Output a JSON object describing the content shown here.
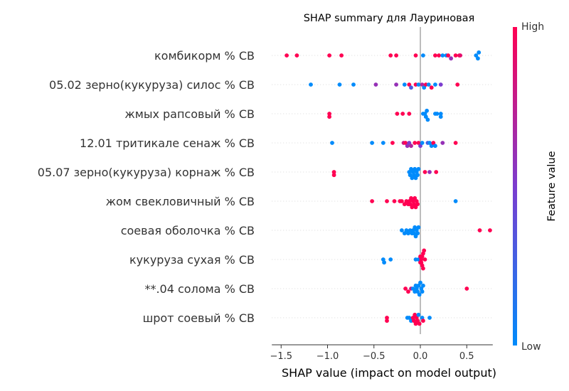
{
  "chart_data": {
    "type": "scatter",
    "title": "SHAP summary для Лауриновая",
    "xlabel": "SHAP value (impact on model output)",
    "xlim": [
      -1.6,
      0.78
    ],
    "xticks": [
      -1.5,
      -1.0,
      -0.5,
      0.0,
      0.5
    ],
    "xtick_labels": [
      "−1.5",
      "−1.0",
      "−0.5",
      "0.0",
      "0.5"
    ],
    "colorbar": {
      "label": "Feature value",
      "high_label": "High",
      "low_label": "Low",
      "colors": {
        "low": "#008bfb",
        "mid": "#7b3ccf",
        "high": "#ff0052"
      }
    },
    "features": [
      {
        "name": "комбикорм % СВ",
        "points": [
          {
            "x": -1.44,
            "v": 1
          },
          {
            "x": -1.33,
            "v": 1
          },
          {
            "x": -0.98,
            "v": 1
          },
          {
            "x": -0.85,
            "v": 1
          },
          {
            "x": -0.32,
            "v": 1
          },
          {
            "x": -0.26,
            "v": 1
          },
          {
            "x": -0.05,
            "v": 1
          },
          {
            "x": 0.03,
            "v": 0
          },
          {
            "x": 0.16,
            "v": 1
          },
          {
            "x": 0.2,
            "v": 1
          },
          {
            "x": 0.24,
            "v": 0
          },
          {
            "x": 0.28,
            "v": 0
          },
          {
            "x": 0.3,
            "v": 1
          },
          {
            "x": 0.33,
            "v": 0.6
          },
          {
            "x": 0.38,
            "v": 1
          },
          {
            "x": 0.42,
            "v": 1
          },
          {
            "x": 0.6,
            "v": 0
          },
          {
            "x": 0.62,
            "v": 0
          },
          {
            "x": 0.63,
            "v": 0
          },
          {
            "x": 0.43,
            "v": 0.9
          }
        ]
      },
      {
        "name": "05.02 зерно(кукуруза) силос % СВ",
        "points": [
          {
            "x": -1.18,
            "v": 0
          },
          {
            "x": -0.87,
            "v": 0
          },
          {
            "x": -0.72,
            "v": 0
          },
          {
            "x": -0.48,
            "v": 0.6
          },
          {
            "x": -0.26,
            "v": 0.6
          },
          {
            "x": -0.17,
            "v": 0
          },
          {
            "x": -0.12,
            "v": 1
          },
          {
            "x": -0.1,
            "v": 0.3
          },
          {
            "x": -0.05,
            "v": 1
          },
          {
            "x": -0.02,
            "v": 0
          },
          {
            "x": 0.02,
            "v": 0.7
          },
          {
            "x": 0.04,
            "v": 0
          },
          {
            "x": 0.06,
            "v": 1
          },
          {
            "x": 0.09,
            "v": 0
          },
          {
            "x": 0.12,
            "v": 1
          },
          {
            "x": 0.16,
            "v": 0
          },
          {
            "x": 0.22,
            "v": 0.5
          },
          {
            "x": 0.4,
            "v": 1
          }
        ]
      },
      {
        "name": "жмых рапсовый % СВ",
        "points": [
          {
            "x": -0.98,
            "v": 1
          },
          {
            "x": -0.98,
            "v": 1
          },
          {
            "x": -0.25,
            "v": 1
          },
          {
            "x": -0.19,
            "v": 1
          },
          {
            "x": -0.12,
            "v": 1
          },
          {
            "x": 0.03,
            "v": 0
          },
          {
            "x": 0.05,
            "v": 0
          },
          {
            "x": 0.06,
            "v": 0
          },
          {
            "x": 0.07,
            "v": 0
          },
          {
            "x": 0.08,
            "v": 0
          },
          {
            "x": 0.16,
            "v": 0
          },
          {
            "x": 0.18,
            "v": 0
          },
          {
            "x": 0.22,
            "v": 0
          },
          {
            "x": 0.22,
            "v": 0
          }
        ]
      },
      {
        "name": "12.01 тритикале сенаж % СВ",
        "points": [
          {
            "x": -0.95,
            "v": 0
          },
          {
            "x": -0.52,
            "v": 0
          },
          {
            "x": -0.4,
            "v": 0
          },
          {
            "x": -0.3,
            "v": 1
          },
          {
            "x": -0.18,
            "v": 0.8
          },
          {
            "x": -0.16,
            "v": 1
          },
          {
            "x": -0.14,
            "v": 0.6
          },
          {
            "x": -0.12,
            "v": 0.5
          },
          {
            "x": -0.1,
            "v": 0.7
          },
          {
            "x": -0.06,
            "v": 1
          },
          {
            "x": -0.02,
            "v": 1
          },
          {
            "x": 0.0,
            "v": 0.5
          },
          {
            "x": 0.02,
            "v": 0
          },
          {
            "x": 0.08,
            "v": 0.3
          },
          {
            "x": 0.1,
            "v": 0
          },
          {
            "x": 0.12,
            "v": 0
          },
          {
            "x": 0.14,
            "v": 1
          },
          {
            "x": 0.16,
            "v": 0
          },
          {
            "x": 0.24,
            "v": 0.6
          },
          {
            "x": 0.38,
            "v": 1
          }
        ]
      },
      {
        "name": "05.07 зерно(кукуруза) корнаж % СВ",
        "points": [
          {
            "x": -0.93,
            "v": 1
          },
          {
            "x": -0.93,
            "v": 1
          },
          {
            "x": -0.12,
            "v": 0
          },
          {
            "x": -0.11,
            "v": 0
          },
          {
            "x": -0.1,
            "v": 0
          },
          {
            "x": -0.09,
            "v": 0
          },
          {
            "x": -0.08,
            "v": 0
          },
          {
            "x": -0.07,
            "v": 0
          },
          {
            "x": -0.06,
            "v": 0
          },
          {
            "x": -0.05,
            "v": 0
          },
          {
            "x": -0.04,
            "v": 0
          },
          {
            "x": -0.03,
            "v": 0
          },
          {
            "x": -0.02,
            "v": 0
          },
          {
            "x": 0.05,
            "v": 1
          },
          {
            "x": 0.1,
            "v": 0.6
          },
          {
            "x": 0.17,
            "v": 1
          }
        ]
      },
      {
        "name": "жом свекловичный % СВ",
        "points": [
          {
            "x": -0.52,
            "v": 1
          },
          {
            "x": -0.36,
            "v": 1
          },
          {
            "x": -0.28,
            "v": 1
          },
          {
            "x": -0.22,
            "v": 1
          },
          {
            "x": -0.2,
            "v": 1
          },
          {
            "x": -0.17,
            "v": 1
          },
          {
            "x": -0.15,
            "v": 1
          },
          {
            "x": -0.13,
            "v": 1
          },
          {
            "x": -0.12,
            "v": 1
          },
          {
            "x": -0.11,
            "v": 1
          },
          {
            "x": -0.1,
            "v": 1
          },
          {
            "x": -0.09,
            "v": 1
          },
          {
            "x": -0.08,
            "v": 1
          },
          {
            "x": -0.07,
            "v": 1
          },
          {
            "x": -0.06,
            "v": 1
          },
          {
            "x": -0.05,
            "v": 1
          },
          {
            "x": -0.04,
            "v": 1
          },
          {
            "x": -0.03,
            "v": 1
          },
          {
            "x": 0.38,
            "v": 0
          }
        ]
      },
      {
        "name": "соевая оболочка % СВ",
        "points": [
          {
            "x": -0.2,
            "v": 0
          },
          {
            "x": -0.17,
            "v": 0
          },
          {
            "x": -0.15,
            "v": 0
          },
          {
            "x": -0.13,
            "v": 0
          },
          {
            "x": -0.11,
            "v": 0
          },
          {
            "x": -0.09,
            "v": 0
          },
          {
            "x": -0.08,
            "v": 0
          },
          {
            "x": -0.07,
            "v": 0
          },
          {
            "x": -0.06,
            "v": 0
          },
          {
            "x": -0.05,
            "v": 0
          },
          {
            "x": -0.04,
            "v": 0
          },
          {
            "x": -0.03,
            "v": 0
          },
          {
            "x": -0.02,
            "v": 0
          },
          {
            "x": 0.64,
            "v": 1
          },
          {
            "x": 0.75,
            "v": 1
          }
        ]
      },
      {
        "name": "кукуруза сухая % СВ",
        "points": [
          {
            "x": -0.4,
            "v": 0
          },
          {
            "x": -0.39,
            "v": 0
          },
          {
            "x": -0.32,
            "v": 0
          },
          {
            "x": -0.05,
            "v": 0
          },
          {
            "x": -0.02,
            "v": 0
          },
          {
            "x": 0.0,
            "v": 1
          },
          {
            "x": 0.0,
            "v": 1
          },
          {
            "x": 0.01,
            "v": 1
          },
          {
            "x": 0.01,
            "v": 1
          },
          {
            "x": 0.02,
            "v": 1
          },
          {
            "x": 0.02,
            "v": 1
          },
          {
            "x": 0.03,
            "v": 1
          },
          {
            "x": 0.03,
            "v": 1
          },
          {
            "x": 0.04,
            "v": 1
          },
          {
            "x": 0.05,
            "v": 1
          }
        ]
      },
      {
        "name": "**.04 солома % СВ",
        "points": [
          {
            "x": -0.16,
            "v": 1
          },
          {
            "x": -0.13,
            "v": 1
          },
          {
            "x": -0.1,
            "v": 0.8
          },
          {
            "x": -0.08,
            "v": 0
          },
          {
            "x": -0.06,
            "v": 0
          },
          {
            "x": -0.05,
            "v": 0
          },
          {
            "x": -0.04,
            "v": 0
          },
          {
            "x": -0.03,
            "v": 0
          },
          {
            "x": -0.02,
            "v": 0
          },
          {
            "x": -0.01,
            "v": 0
          },
          {
            "x": 0.0,
            "v": 0
          },
          {
            "x": 0.01,
            "v": 0
          },
          {
            "x": 0.02,
            "v": 0
          },
          {
            "x": 0.03,
            "v": 0
          },
          {
            "x": 0.5,
            "v": 1
          }
        ]
      },
      {
        "name": "шрот соевый % СВ",
        "points": [
          {
            "x": -0.36,
            "v": 1
          },
          {
            "x": -0.36,
            "v": 1
          },
          {
            "x": -0.14,
            "v": 0
          },
          {
            "x": -0.12,
            "v": 0
          },
          {
            "x": -0.1,
            "v": 0
          },
          {
            "x": -0.08,
            "v": 1
          },
          {
            "x": -0.07,
            "v": 1
          },
          {
            "x": -0.06,
            "v": 1
          },
          {
            "x": -0.05,
            "v": 1
          },
          {
            "x": -0.04,
            "v": 1
          },
          {
            "x": -0.03,
            "v": 1
          },
          {
            "x": -0.02,
            "v": 0
          },
          {
            "x": -0.01,
            "v": 1
          },
          {
            "x": 0.02,
            "v": 0
          },
          {
            "x": 0.03,
            "v": 1
          },
          {
            "x": 0.1,
            "v": 0
          }
        ]
      }
    ]
  }
}
